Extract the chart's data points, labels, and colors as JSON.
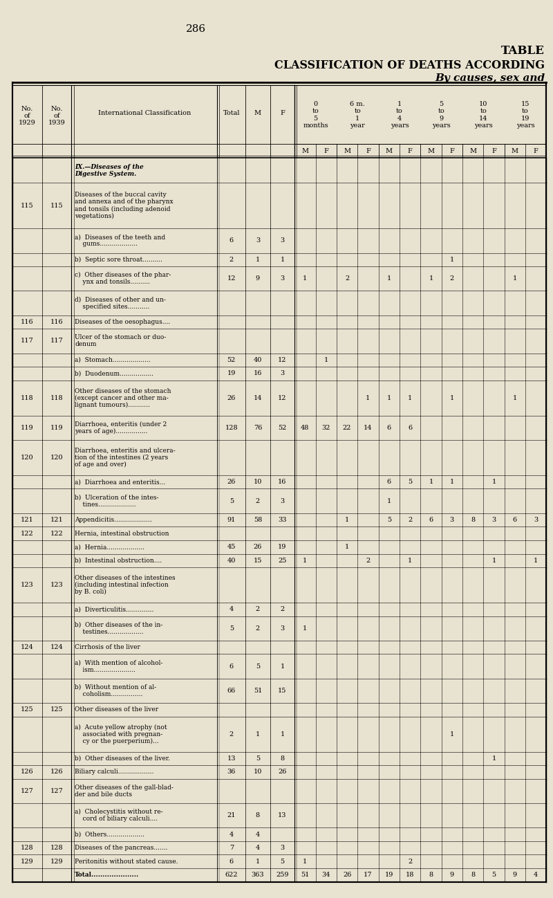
{
  "page_number": "286",
  "title_line1": "TABLE",
  "title_line2": "CLASSIFICATION OF DEATHS ACCORDING",
  "title_line3": "By causes, sex and",
  "bg_color": "#e8e2d0",
  "rows": [
    {
      "no1": "",
      "no2": "",
      "desc": "IX.—Diseases of the\nDigestive System.",
      "total": "",
      "m": "",
      "f": "",
      "data": [
        "",
        "",
        "",
        "",
        "",
        "",
        "",
        "",
        "",
        "",
        "",
        ""
      ],
      "bold": true,
      "section_head": true,
      "total_row": false
    },
    {
      "no1": "115",
      "no2": "115",
      "desc": "Diseases of the buccal cavity\nand annexa and of the pharynx\nand tonsils (including adenoid\nvegetations)",
      "total": "",
      "m": "",
      "f": "",
      "data": [
        "",
        "",
        "",
        "",
        "",
        "",
        "",
        "",
        "",
        "",
        "",
        ""
      ],
      "bold": false,
      "section_head": false,
      "total_row": false
    },
    {
      "no1": "",
      "no2": "",
      "desc": "a)  Diseases of the teeth and\n    gums...................",
      "total": "6",
      "m": "3",
      "f": "3",
      "data": [
        "",
        "",
        "",
        "",
        "",
        "",
        "",
        "",
        "",
        "",
        "",
        ""
      ],
      "bold": false,
      "section_head": false,
      "total_row": false
    },
    {
      "no1": "",
      "no2": "",
      "desc": "b)  Septic sore throat..........",
      "total": "2",
      "m": "1",
      "f": "1",
      "data": [
        "",
        "",
        "",
        "",
        "",
        "",
        "",
        "1",
        "",
        "",
        "",
        ""
      ],
      "bold": false,
      "section_head": false,
      "total_row": false
    },
    {
      "no1": "",
      "no2": "",
      "desc": "c)  Other diseases of the phar-\n    ynx and tonsils..........",
      "total": "12",
      "m": "9",
      "f": "3",
      "data": [
        "1",
        "",
        "2",
        "",
        "1",
        "",
        "1",
        "2",
        "",
        "",
        "1",
        ""
      ],
      "bold": false,
      "section_head": false,
      "total_row": false
    },
    {
      "no1": "",
      "no2": "",
      "desc": "d)  Diseases of other and un-\n    specified sites...........",
      "total": "",
      "m": "",
      "f": "",
      "data": [
        "",
        "",
        "",
        "",
        "",
        "",
        "",
        "",
        "",
        "",
        "",
        ""
      ],
      "bold": false,
      "section_head": false,
      "total_row": false
    },
    {
      "no1": "116",
      "no2": "116",
      "desc": "Diseases of the oesophagus....",
      "total": "",
      "m": "",
      "f": "",
      "data": [
        "",
        "",
        "",
        "",
        "",
        "",
        "",
        "",
        "",
        "",
        "",
        ""
      ],
      "bold": false,
      "section_head": false,
      "total_row": false
    },
    {
      "no1": "117",
      "no2": "117",
      "desc": "Ulcer of the stomach or duo-\ndenum",
      "total": "",
      "m": "",
      "f": "",
      "data": [
        "",
        "",
        "",
        "",
        "",
        "",
        "",
        "",
        "",
        "",
        "",
        ""
      ],
      "bold": false,
      "section_head": false,
      "total_row": false
    },
    {
      "no1": "",
      "no2": "",
      "desc": "a)  Stomach...................",
      "total": "52",
      "m": "40",
      "f": "12",
      "data": [
        "",
        "1",
        "",
        "",
        "",
        "",
        "",
        "",
        "",
        "",
        "",
        ""
      ],
      "bold": false,
      "section_head": false,
      "total_row": false
    },
    {
      "no1": "",
      "no2": "",
      "desc": "b)  Duodenum.................",
      "total": "19",
      "m": "16",
      "f": "3",
      "data": [
        "",
        "",
        "",
        "",
        "",
        "",
        "",
        "",
        "",
        "",
        "",
        ""
      ],
      "bold": false,
      "section_head": false,
      "total_row": false
    },
    {
      "no1": "118",
      "no2": "118",
      "desc": "Other diseases of the stomach\n(except cancer and other ma-\nlignant tumours)...........",
      "total": "26",
      "m": "14",
      "f": "12",
      "data": [
        "",
        "",
        "",
        "1",
        "1",
        "1",
        "",
        "1",
        "",
        "",
        "1",
        ""
      ],
      "bold": false,
      "section_head": false,
      "total_row": false
    },
    {
      "no1": "119",
      "no2": "119",
      "desc": "Diarrhoea, enteritis (under 2\nyears of age)................",
      "total": "128",
      "m": "76",
      "f": "52",
      "data": [
        "48",
        "32",
        "22",
        "14",
        "6",
        "6",
        "",
        "",
        "",
        "",
        "",
        ""
      ],
      "bold": false,
      "section_head": false,
      "total_row": false
    },
    {
      "no1": "120",
      "no2": "120",
      "desc": "Diarrhoea, enteritis and ulcera-\ntion of the intestines (2 years\nof age and over)",
      "total": "",
      "m": "",
      "f": "",
      "data": [
        "",
        "",
        "",
        "",
        "",
        "",
        "",
        "",
        "",
        "",
        "",
        ""
      ],
      "bold": false,
      "section_head": false,
      "total_row": false
    },
    {
      "no1": "",
      "no2": "",
      "desc": "a)  Diarrhoea and enteritis...",
      "total": "26",
      "m": "10",
      "f": "16",
      "data": [
        "",
        "",
        "",
        "",
        "6",
        "5",
        "1",
        "1",
        "",
        "1",
        "",
        ""
      ],
      "bold": false,
      "section_head": false,
      "total_row": false
    },
    {
      "no1": "",
      "no2": "",
      "desc": "b)  Ulceration of the intes-\n    tines...................",
      "total": "5",
      "m": "2",
      "f": "3",
      "data": [
        "",
        "",
        "",
        "",
        "1",
        "",
        "",
        "",
        "",
        "",
        "",
        ""
      ],
      "bold": false,
      "section_head": false,
      "total_row": false
    },
    {
      "no1": "121",
      "no2": "121",
      "desc": "Appendicitis...................",
      "total": "91",
      "m": "58",
      "f": "33",
      "data": [
        "",
        "",
        "1",
        "",
        "5",
        "2",
        "6",
        "3",
        "8",
        "3",
        "6",
        "3"
      ],
      "bold": false,
      "section_head": false,
      "total_row": false
    },
    {
      "no1": "122",
      "no2": "122",
      "desc": "Hernia, intestinal obstruction",
      "total": "",
      "m": "",
      "f": "",
      "data": [
        "",
        "",
        "",
        "",
        "",
        "",
        "",
        "",
        "",
        "",
        "",
        ""
      ],
      "bold": false,
      "section_head": false,
      "total_row": false
    },
    {
      "no1": "",
      "no2": "",
      "desc": "a)  Hernia...................",
      "total": "45",
      "m": "26",
      "f": "19",
      "data": [
        "",
        "",
        "1",
        "",
        "",
        "",
        "",
        "",
        "",
        "",
        "",
        ""
      ],
      "bold": false,
      "section_head": false,
      "total_row": false
    },
    {
      "no1": "",
      "no2": "",
      "desc": "b)  Intestinal obstruction....",
      "total": "40",
      "m": "15",
      "f": "25",
      "data": [
        "1",
        "",
        "",
        "2",
        "",
        "1",
        "",
        "",
        "",
        "1",
        "",
        "1"
      ],
      "bold": false,
      "section_head": false,
      "total_row": false
    },
    {
      "no1": "123",
      "no2": "123",
      "desc": "Other diseases of the intestines\n(including intestinal infection\nby B. coli)",
      "total": "",
      "m": "",
      "f": "",
      "data": [
        "",
        "",
        "",
        "",
        "",
        "",
        "",
        "",
        "",
        "",
        "",
        ""
      ],
      "bold": false,
      "section_head": false,
      "total_row": false
    },
    {
      "no1": "",
      "no2": "",
      "desc": "a)  Diverticulitis..............",
      "total": "4",
      "m": "2",
      "f": "2",
      "data": [
        "",
        "",
        "",
        "",
        "",
        "",
        "",
        "",
        "",
        "",
        "",
        ""
      ],
      "bold": false,
      "section_head": false,
      "total_row": false
    },
    {
      "no1": "",
      "no2": "",
      "desc": "b)  Other diseases of the in-\n    testines..................",
      "total": "5",
      "m": "2",
      "f": "3",
      "data": [
        "1",
        "",
        "",
        "",
        "",
        "",
        "",
        "",
        "",
        "",
        "",
        ""
      ],
      "bold": false,
      "section_head": false,
      "total_row": false
    },
    {
      "no1": "124",
      "no2": "124",
      "desc": "Cirrhosis of the liver",
      "total": "",
      "m": "",
      "f": "",
      "data": [
        "",
        "",
        "",
        "",
        "",
        "",
        "",
        "",
        "",
        "",
        "",
        ""
      ],
      "bold": false,
      "section_head": false,
      "total_row": false
    },
    {
      "no1": "",
      "no2": "",
      "desc": "a)  With mention of alcohol-\n    ism.....................",
      "total": "6",
      "m": "5",
      "f": "1",
      "data": [
        "",
        "",
        "",
        "",
        "",
        "",
        "",
        "",
        "",
        "",
        "",
        ""
      ],
      "bold": false,
      "section_head": false,
      "total_row": false
    },
    {
      "no1": "",
      "no2": "",
      "desc": "b)  Without mention of al-\n    coholism................",
      "total": "66",
      "m": "51",
      "f": "15",
      "data": [
        "",
        "",
        "",
        "",
        "",
        "",
        "",
        "",
        "",
        "",
        "",
        ""
      ],
      "bold": false,
      "section_head": false,
      "total_row": false
    },
    {
      "no1": "125",
      "no2": "125",
      "desc": "Other diseases of the liver",
      "total": "",
      "m": "",
      "f": "",
      "data": [
        "",
        "",
        "",
        "",
        "",
        "",
        "",
        "",
        "",
        "",
        "",
        ""
      ],
      "bold": false,
      "section_head": false,
      "total_row": false
    },
    {
      "no1": "",
      "no2": "",
      "desc": "a)  Acute yellow atrophy (not\n    associated with pregnan-\n    cy or the puerperium)...",
      "total": "2",
      "m": "1",
      "f": "1",
      "data": [
        "",
        "",
        "",
        "",
        "",
        "",
        "",
        "1",
        "",
        "",
        "",
        ""
      ],
      "bold": false,
      "section_head": false,
      "total_row": false
    },
    {
      "no1": "",
      "no2": "",
      "desc": "b)  Other diseases of the liver.",
      "total": "13",
      "m": "5",
      "f": "8",
      "data": [
        "",
        "",
        "",
        "",
        "",
        "",
        "",
        "",
        "",
        "1",
        "",
        ""
      ],
      "bold": false,
      "section_head": false,
      "total_row": false
    },
    {
      "no1": "126",
      "no2": "126",
      "desc": "Biliary calculi..................",
      "total": "36",
      "m": "10",
      "f": "26",
      "data": [
        "",
        "",
        "",
        "",
        "",
        "",
        "",
        "",
        "",
        "",
        "",
        ""
      ],
      "bold": false,
      "section_head": false,
      "total_row": false
    },
    {
      "no1": "127",
      "no2": "127",
      "desc": "Other diseases of the gall-blad-\nder and bile ducts",
      "total": "",
      "m": "",
      "f": "",
      "data": [
        "",
        "",
        "",
        "",
        "",
        "",
        "",
        "",
        "",
        "",
        "",
        ""
      ],
      "bold": false,
      "section_head": false,
      "total_row": false
    },
    {
      "no1": "",
      "no2": "",
      "desc": "a)  Cholecystitis without re-\n    cord of biliary calculi....",
      "total": "21",
      "m": "8",
      "f": "13",
      "data": [
        "",
        "",
        "",
        "",
        "",
        "",
        "",
        "",
        "",
        "",
        "",
        ""
      ],
      "bold": false,
      "section_head": false,
      "total_row": false
    },
    {
      "no1": "",
      "no2": "",
      "desc": "b)  Others...................",
      "total": "4",
      "m": "4",
      "f": "",
      "data": [
        "",
        "",
        "",
        "",
        "",
        "",
        "",
        "",
        "",
        "",
        "",
        ""
      ],
      "bold": false,
      "section_head": false,
      "total_row": false
    },
    {
      "no1": "128",
      "no2": "128",
      "desc": "Diseases of the pancreas.......",
      "total": "7",
      "m": "4",
      "f": "3",
      "data": [
        "",
        "",
        "",
        "",
        "",
        "",
        "",
        "",
        "",
        "",
        "",
        ""
      ],
      "bold": false,
      "section_head": false,
      "total_row": false
    },
    {
      "no1": "129",
      "no2": "129",
      "desc": "Peritonitis without stated cause.",
      "total": "6",
      "m": "1",
      "f": "5",
      "data": [
        "1",
        "",
        "",
        "",
        "",
        "2",
        "",
        "",
        "",
        "",
        "",
        ""
      ],
      "bold": false,
      "section_head": false,
      "total_row": false
    },
    {
      "no1": "",
      "no2": "",
      "desc": "Total.....................",
      "total": "622",
      "m": "363",
      "f": "259",
      "data": [
        "51",
        "34",
        "26",
        "17",
        "19",
        "18",
        "8",
        "9",
        "8",
        "5",
        "9",
        "4"
      ],
      "bold": true,
      "section_head": false,
      "total_row": true
    }
  ]
}
